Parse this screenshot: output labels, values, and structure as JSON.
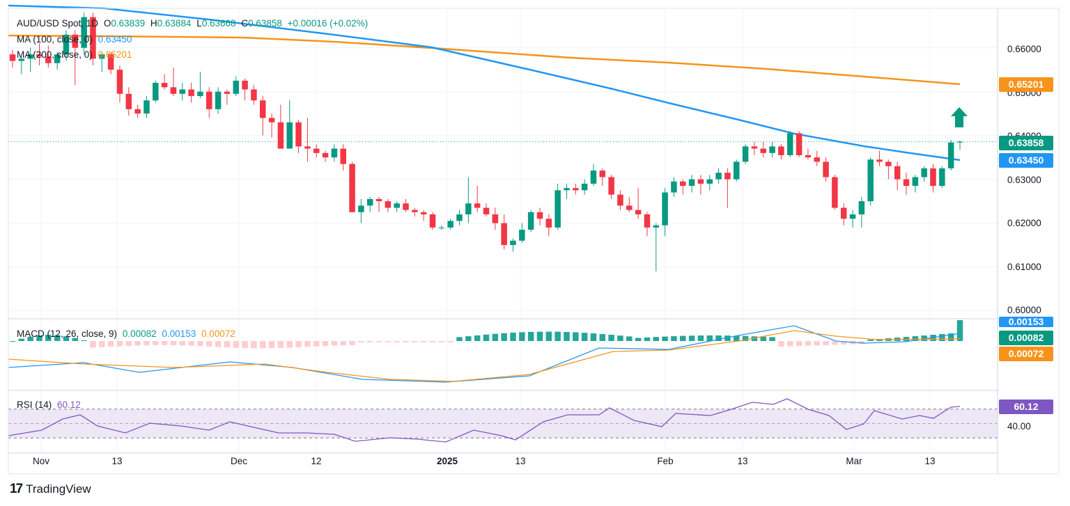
{
  "legend": {
    "symbol": "AUD/USD Spot, 1D",
    "ohlc": {
      "o_label": "O",
      "o": "0.63839",
      "h_label": "H",
      "h": "0.63884",
      "l_label": "L",
      "l": "0.63668",
      "c_label": "C",
      "c": "0.63858",
      "change": "+0.00016 (+0.02%)"
    },
    "ma100_label": "MA (100, close, 0)",
    "ma100_value": "0.63450",
    "ma200_label": "MA (200, close, 0)",
    "ma200_value": "0.65201",
    "macd_label": "MACD (12, 26, close, 9)",
    "macd_hist": "0.00082",
    "macd_line": "0.00153",
    "macd_signal": "0.00072",
    "rsi_label": "RSI (14)",
    "rsi_value": "60.12"
  },
  "price_axis": {
    "labels": [
      "0.66000",
      "0.65000",
      "0.64000",
      "0.63000",
      "0.62000",
      "0.61000",
      "0.60000"
    ]
  },
  "tags": {
    "ma200": "0.65201",
    "price": "0.63858",
    "ma100": "0.63450",
    "macd_line": "0.00153",
    "macd_hist": "0.00082",
    "macd_signal": "0.00072",
    "rsi": "60.12",
    "rsi_axis": "40.00"
  },
  "time_axis": {
    "labels": [
      {
        "text": "Nov",
        "bold": false
      },
      {
        "text": "13",
        "bold": false
      },
      {
        "text": "Dec",
        "bold": false
      },
      {
        "text": "12",
        "bold": false
      },
      {
        "text": "2025",
        "bold": true
      },
      {
        "text": "13",
        "bold": false
      },
      {
        "text": "Feb",
        "bold": false
      },
      {
        "text": "13",
        "bold": false
      },
      {
        "text": "Mar",
        "bold": false
      },
      {
        "text": "13",
        "bold": false
      }
    ]
  },
  "brand": {
    "logo": "17",
    "name": "TradingView"
  },
  "colors": {
    "up": "#089981",
    "down": "#f23645",
    "ma100": "#2196f3",
    "ma200": "#f7931a",
    "rsi": "#7e57c2",
    "rsi_band": "#ede7f6"
  },
  "chart_data": {
    "type": "candlestick",
    "title": "AUD/USD Spot, 1D",
    "candles_ohlc": [
      [
        0.6585,
        0.6595,
        0.6555,
        0.657
      ],
      [
        0.657,
        0.658,
        0.654,
        0.6575
      ],
      [
        0.6575,
        0.66,
        0.6545,
        0.6585
      ],
      [
        0.6585,
        0.661,
        0.656,
        0.658
      ],
      [
        0.658,
        0.6605,
        0.6555,
        0.6565
      ],
      [
        0.6565,
        0.659,
        0.655,
        0.6585
      ],
      [
        0.6585,
        0.664,
        0.657,
        0.663
      ],
      [
        0.663,
        0.664,
        0.6515,
        0.66
      ],
      [
        0.66,
        0.668,
        0.6585,
        0.667
      ],
      [
        0.667,
        0.668,
        0.656,
        0.6575
      ],
      [
        0.6575,
        0.659,
        0.6545,
        0.6585
      ],
      [
        0.6585,
        0.659,
        0.654,
        0.655
      ],
      [
        0.655,
        0.656,
        0.6475,
        0.6495
      ],
      [
        0.6495,
        0.651,
        0.6445,
        0.646
      ],
      [
        0.646,
        0.647,
        0.644,
        0.645
      ],
      [
        0.645,
        0.649,
        0.644,
        0.648
      ],
      [
        0.648,
        0.6525,
        0.6475,
        0.652
      ],
      [
        0.652,
        0.654,
        0.6505,
        0.651
      ],
      [
        0.651,
        0.6555,
        0.649,
        0.6495
      ],
      [
        0.6495,
        0.652,
        0.648,
        0.6505
      ],
      [
        0.6505,
        0.652,
        0.6475,
        0.649
      ],
      [
        0.649,
        0.6545,
        0.6485,
        0.65
      ],
      [
        0.65,
        0.651,
        0.644,
        0.646
      ],
      [
        0.646,
        0.651,
        0.645,
        0.65
      ],
      [
        0.65,
        0.6505,
        0.647,
        0.6495
      ],
      [
        0.6495,
        0.6535,
        0.649,
        0.6525
      ],
      [
        0.6525,
        0.653,
        0.648,
        0.6505
      ],
      [
        0.6505,
        0.6515,
        0.647,
        0.648
      ],
      [
        0.648,
        0.649,
        0.64,
        0.644
      ],
      [
        0.644,
        0.645,
        0.6395,
        0.643
      ],
      [
        0.643,
        0.647,
        0.638,
        0.637
      ],
      [
        0.637,
        0.648,
        0.6375,
        0.643
      ],
      [
        0.643,
        0.6435,
        0.636,
        0.6375
      ],
      [
        0.6375,
        0.644,
        0.634,
        0.637
      ],
      [
        0.637,
        0.638,
        0.635,
        0.636
      ],
      [
        0.636,
        0.6365,
        0.634,
        0.635
      ],
      [
        0.635,
        0.638,
        0.634,
        0.637
      ],
      [
        0.637,
        0.638,
        0.632,
        0.6335
      ],
      [
        0.6335,
        0.634,
        0.6225,
        0.6225
      ],
      [
        0.6225,
        0.6255,
        0.62,
        0.624
      ],
      [
        0.624,
        0.626,
        0.6225,
        0.6255
      ],
      [
        0.6255,
        0.626,
        0.6225,
        0.625
      ],
      [
        0.625,
        0.6255,
        0.6225,
        0.6235
      ],
      [
        0.6235,
        0.625,
        0.6225,
        0.6245
      ],
      [
        0.6245,
        0.6255,
        0.6225,
        0.623
      ],
      [
        0.623,
        0.6235,
        0.6215,
        0.6225
      ],
      [
        0.6225,
        0.623,
        0.6205,
        0.622
      ],
      [
        0.622,
        0.6225,
        0.6185,
        0.619
      ],
      [
        0.619,
        0.6195,
        0.6185,
        0.619
      ],
      [
        0.619,
        0.621,
        0.6185,
        0.6205
      ],
      [
        0.6205,
        0.623,
        0.6195,
        0.622
      ],
      [
        0.622,
        0.6305,
        0.62,
        0.6245
      ],
      [
        0.6245,
        0.6285,
        0.6225,
        0.6235
      ],
      [
        0.6235,
        0.6245,
        0.6215,
        0.622
      ],
      [
        0.622,
        0.6235,
        0.6185,
        0.62
      ],
      [
        0.62,
        0.622,
        0.614,
        0.615
      ],
      [
        0.615,
        0.6165,
        0.6135,
        0.616
      ],
      [
        0.616,
        0.62,
        0.6155,
        0.6185
      ],
      [
        0.6185,
        0.623,
        0.618,
        0.6225
      ],
      [
        0.6225,
        0.6235,
        0.6195,
        0.621
      ],
      [
        0.621,
        0.622,
        0.617,
        0.619
      ],
      [
        0.619,
        0.629,
        0.6185,
        0.6275
      ],
      [
        0.6275,
        0.629,
        0.6255,
        0.628
      ],
      [
        0.628,
        0.629,
        0.6265,
        0.6275
      ],
      [
        0.6275,
        0.63,
        0.6265,
        0.629
      ],
      [
        0.629,
        0.6335,
        0.6285,
        0.632
      ],
      [
        0.632,
        0.6325,
        0.6285,
        0.6305
      ],
      [
        0.6305,
        0.631,
        0.6255,
        0.6265
      ],
      [
        0.6265,
        0.6275,
        0.623,
        0.624
      ],
      [
        0.624,
        0.626,
        0.6225,
        0.623
      ],
      [
        0.623,
        0.628,
        0.621,
        0.622
      ],
      [
        0.622,
        0.6225,
        0.617,
        0.619
      ],
      [
        0.619,
        0.62,
        0.609,
        0.6195
      ],
      [
        0.6195,
        0.628,
        0.617,
        0.627
      ],
      [
        0.627,
        0.6305,
        0.626,
        0.6295
      ],
      [
        0.6295,
        0.63,
        0.6265,
        0.6285
      ],
      [
        0.6285,
        0.631,
        0.627,
        0.63
      ],
      [
        0.63,
        0.631,
        0.6265,
        0.629
      ],
      [
        0.629,
        0.631,
        0.6275,
        0.63
      ],
      [
        0.63,
        0.6325,
        0.629,
        0.6315
      ],
      [
        0.6315,
        0.6325,
        0.6235,
        0.63
      ],
      [
        0.63,
        0.6345,
        0.6295,
        0.634
      ],
      [
        0.634,
        0.638,
        0.6335,
        0.6375
      ],
      [
        0.6375,
        0.6385,
        0.6355,
        0.637
      ],
      [
        0.637,
        0.6385,
        0.635,
        0.636
      ],
      [
        0.636,
        0.6385,
        0.635,
        0.6375
      ],
      [
        0.6375,
        0.638,
        0.6345,
        0.6355
      ],
      [
        0.6355,
        0.641,
        0.635,
        0.6405
      ],
      [
        0.6405,
        0.641,
        0.635,
        0.6355
      ],
      [
        0.6355,
        0.637,
        0.6345,
        0.635
      ],
      [
        0.635,
        0.6365,
        0.633,
        0.634
      ],
      [
        0.634,
        0.635,
        0.6295,
        0.6305
      ],
      [
        0.6305,
        0.631,
        0.623,
        0.6235
      ],
      [
        0.6235,
        0.6245,
        0.6195,
        0.621
      ],
      [
        0.621,
        0.623,
        0.619,
        0.622
      ],
      [
        0.622,
        0.626,
        0.619,
        0.625
      ],
      [
        0.625,
        0.635,
        0.624,
        0.6345
      ],
      [
        0.6345,
        0.6365,
        0.633,
        0.634
      ],
      [
        0.634,
        0.6345,
        0.63,
        0.633
      ],
      [
        0.633,
        0.634,
        0.6275,
        0.63
      ],
      [
        0.63,
        0.6315,
        0.6265,
        0.6285
      ],
      [
        0.6285,
        0.631,
        0.627,
        0.6305
      ],
      [
        0.6305,
        0.633,
        0.6295,
        0.6325
      ],
      [
        0.6325,
        0.6335,
        0.627,
        0.6285
      ],
      [
        0.6285,
        0.633,
        0.628,
        0.6325
      ],
      [
        0.6325,
        0.639,
        0.632,
        0.6384
      ],
      [
        0.63839,
        0.63884,
        0.63668,
        0.63858
      ]
    ],
    "ma100": {
      "name": "MA (100, close, 0)",
      "last": 0.6345
    },
    "ma200": {
      "name": "MA (200, close, 0)",
      "last": 0.65201
    },
    "ylim": [
      0.5985,
      0.669
    ],
    "x_ticks": [
      "Nov",
      "13",
      "Dec",
      "12",
      "2025",
      "13",
      "Feb",
      "13",
      "Mar",
      "13"
    ],
    "macd": {
      "hist": 0.00082,
      "macd": 0.00153,
      "signal": 0.00072
    },
    "rsi": {
      "value": 60.12,
      "upper": 70,
      "lower": 30
    }
  }
}
